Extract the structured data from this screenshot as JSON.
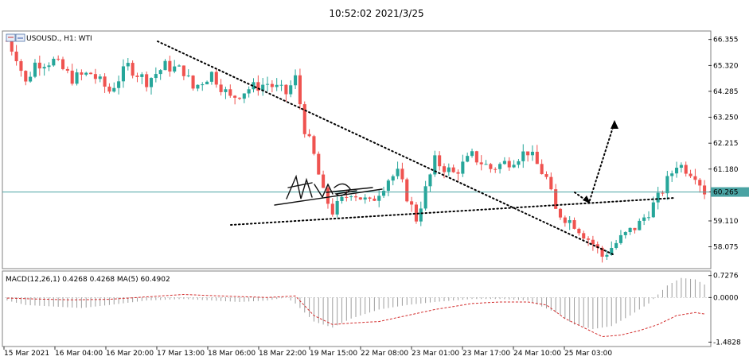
{
  "timestamp": "10:52:02 2021/3/25",
  "colors": {
    "bull": "#26a69a",
    "bear": "#ef5350",
    "current_line": "#4aa3a3",
    "trend": "#000000",
    "macd_hist": "#9e9e9e",
    "macd_signal": "#d32f2f",
    "frame": "#808080"
  },
  "chart_data": [
    {
      "type": "candlestick",
      "title": "USOUSD., H1:  WTI",
      "symbol_icon": "chart-window-icon",
      "y_ticks": [
        "66.355",
        "65.320",
        "64.285",
        "63.250",
        "62.215",
        "61.180",
        "60.265",
        "59.110",
        "58.075"
      ],
      "y_tick_values": [
        66.355,
        65.32,
        64.285,
        63.25,
        62.215,
        61.18,
        60.265,
        59.11,
        58.075
      ],
      "ylim": [
        57.3,
        66.6
      ],
      "current_price": 60.265,
      "x_ticks": [
        "15 Mar 2021",
        "16 Mar 04:00",
        "16 Mar 20:00",
        "17 Mar 13:00",
        "18 Mar 06:00",
        "18 Mar 22:00",
        "19 Mar 15:00",
        "22 Mar 08:00",
        "23 Mar 01:00",
        "23 Mar 17:00",
        "24 Mar 10:00",
        "25 Mar 03:00"
      ],
      "trendlines": [
        {
          "from": [
            0,
            66.0
          ],
          "to": [
            134,
            58.2
          ]
        },
        {
          "from": [
            5,
            59.1
          ],
          "to": [
            127,
            60.2
          ]
        }
      ],
      "projection_arrow": [
        [
          120,
          60.8
        ],
        [
          123,
          60.15
        ],
        [
          131,
          63.0
        ]
      ],
      "annotation_signature": true,
      "anchors": [
        [
          0,
          66.3
        ],
        [
          2,
          65.7
        ],
        [
          4,
          64.6
        ],
        [
          6,
          65.4
        ],
        [
          10,
          65.5
        ],
        [
          14,
          64.8
        ],
        [
          18,
          65.0
        ],
        [
          22,
          64.3
        ],
        [
          26,
          65.3
        ],
        [
          30,
          64.7
        ],
        [
          34,
          65.3
        ],
        [
          38,
          65.1
        ],
        [
          40,
          64.4
        ],
        [
          44,
          65.0
        ],
        [
          48,
          64.0
        ],
        [
          52,
          64.4
        ],
        [
          56,
          64.6
        ],
        [
          60,
          64.2
        ],
        [
          62,
          64.8
        ],
        [
          64,
          62.8
        ],
        [
          66,
          61.7
        ],
        [
          68,
          60.2
        ],
        [
          70,
          59.5
        ],
        [
          74,
          60.3
        ],
        [
          78,
          59.8
        ],
        [
          82,
          60.8
        ],
        [
          84,
          61.0
        ],
        [
          88,
          59.2
        ],
        [
          92,
          61.5
        ],
        [
          96,
          61.0
        ],
        [
          100,
          61.7
        ],
        [
          104,
          61.2
        ],
        [
          108,
          61.5
        ],
        [
          112,
          61.9
        ],
        [
          116,
          60.8
        ],
        [
          118,
          59.5
        ],
        [
          122,
          59.0
        ],
        [
          126,
          58.2
        ],
        [
          128,
          57.7
        ],
        [
          132,
          58.4
        ],
        [
          136,
          59.0
        ],
        [
          140,
          60.0
        ],
        [
          144,
          61.4
        ],
        [
          148,
          61.0
        ],
        [
          150,
          60.3
        ]
      ]
    },
    {
      "type": "histogram",
      "title": "MACD(12,26,1) 0.4268 0.4268 MA(5) 60.4902",
      "y_ticks": [
        "0.7276",
        "0.0000",
        "-1.4828"
      ],
      "y_tick_values": [
        0.7276,
        0.0,
        -1.4828
      ],
      "ylim": [
        -1.55,
        0.8
      ],
      "series": [
        {
          "name": "MACD",
          "style": "histogram"
        },
        {
          "name": "MA(5)",
          "style": "dashed-line"
        }
      ],
      "macd_anchors": [
        [
          0,
          -0.1
        ],
        [
          4,
          -0.25
        ],
        [
          10,
          -0.3
        ],
        [
          16,
          -0.35
        ],
        [
          22,
          -0.25
        ],
        [
          30,
          -0.1
        ],
        [
          38,
          -0.05
        ],
        [
          44,
          -0.1
        ],
        [
          50,
          -0.15
        ],
        [
          56,
          -0.1
        ],
        [
          60,
          0.0
        ],
        [
          62,
          -0.2
        ],
        [
          66,
          -0.8
        ],
        [
          70,
          -1.0
        ],
        [
          74,
          -0.7
        ],
        [
          80,
          -0.4
        ],
        [
          86,
          -0.25
        ],
        [
          92,
          -0.15
        ],
        [
          100,
          -0.05
        ],
        [
          106,
          -0.05
        ],
        [
          112,
          -0.1
        ],
        [
          118,
          -0.5
        ],
        [
          122,
          -0.9
        ],
        [
          126,
          -1.05
        ],
        [
          130,
          -0.95
        ],
        [
          134,
          -0.6
        ],
        [
          138,
          -0.2
        ],
        [
          142,
          0.4
        ],
        [
          145,
          0.65
        ],
        [
          148,
          0.6
        ],
        [
          150,
          0.43
        ]
      ],
      "signal_anchors": [
        [
          0,
          -0.02
        ],
        [
          6,
          -0.05
        ],
        [
          14,
          -0.08
        ],
        [
          22,
          -0.06
        ],
        [
          30,
          0.02
        ],
        [
          38,
          0.1
        ],
        [
          46,
          0.05
        ],
        [
          56,
          0.0
        ],
        [
          62,
          0.05
        ],
        [
          66,
          -0.6
        ],
        [
          70,
          -0.9
        ],
        [
          74,
          -0.85
        ],
        [
          80,
          -0.8
        ],
        [
          86,
          -0.6
        ],
        [
          92,
          -0.4
        ],
        [
          100,
          -0.2
        ],
        [
          106,
          -0.15
        ],
        [
          112,
          -0.15
        ],
        [
          116,
          -0.25
        ],
        [
          120,
          -0.7
        ],
        [
          124,
          -1.0
        ],
        [
          128,
          -1.3
        ],
        [
          132,
          -1.25
        ],
        [
          136,
          -1.1
        ],
        [
          140,
          -0.9
        ],
        [
          144,
          -0.6
        ],
        [
          148,
          -0.5
        ],
        [
          150,
          -0.55
        ]
      ]
    }
  ]
}
